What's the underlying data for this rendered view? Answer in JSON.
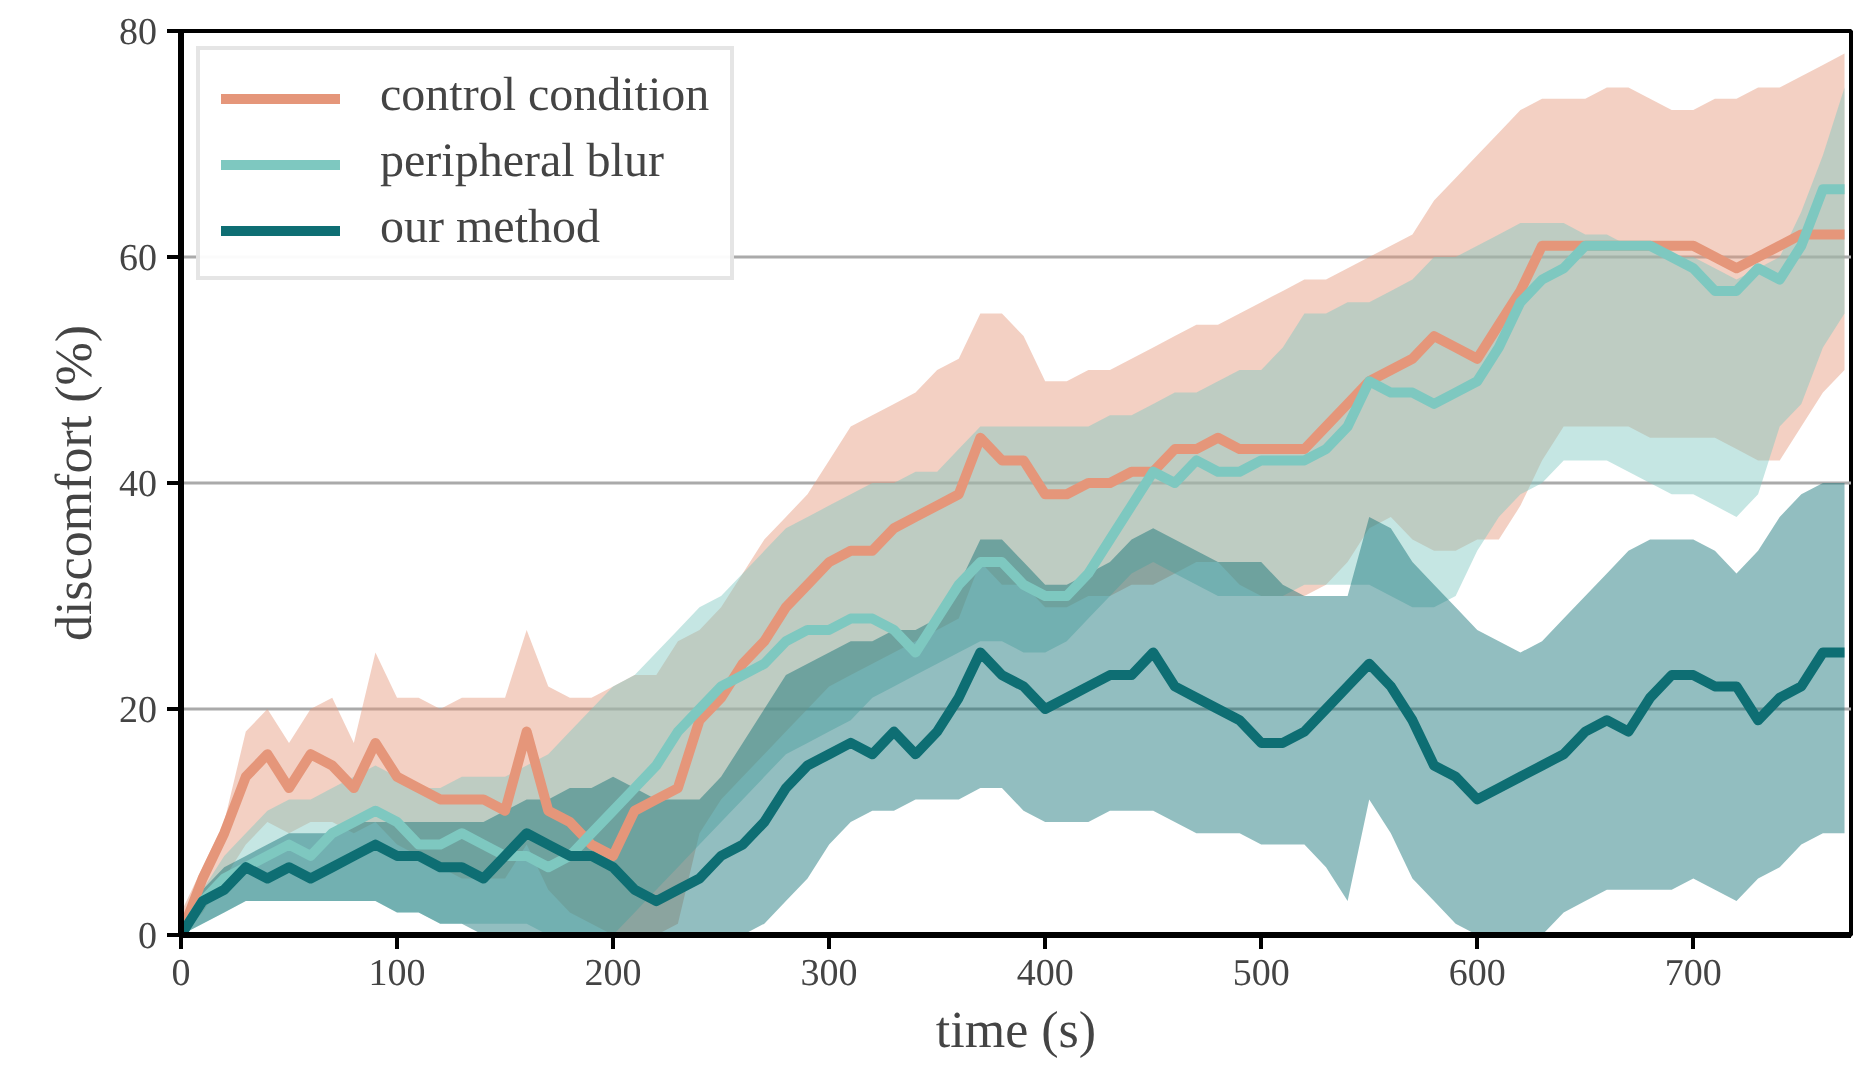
{
  "chart_data": {
    "type": "line",
    "xlabel": "time (s)",
    "ylabel": "discomfort (%)",
    "x": [
      0,
      10,
      20,
      30,
      40,
      50,
      60,
      70,
      80,
      90,
      100,
      110,
      120,
      130,
      140,
      150,
      160,
      170,
      180,
      190,
      200,
      210,
      220,
      230,
      240,
      250,
      260,
      270,
      280,
      290,
      300,
      310,
      320,
      330,
      340,
      350,
      360,
      370,
      380,
      390,
      400,
      410,
      420,
      430,
      440,
      450,
      460,
      470,
      480,
      490,
      500,
      510,
      520,
      530,
      540,
      550,
      560,
      570,
      580,
      590,
      600,
      610,
      620,
      630,
      640,
      650,
      660,
      670,
      680,
      690,
      700,
      710,
      720,
      730,
      740,
      750,
      760,
      770
    ],
    "series": [
      {
        "name": "control condition",
        "color": "#e5967a",
        "values": [
          0,
          5,
          9,
          14,
          16,
          13,
          16,
          15,
          13,
          17,
          14,
          13,
          12,
          12,
          12,
          11,
          18,
          11,
          10,
          8,
          7,
          11,
          12,
          13,
          19,
          21,
          24,
          26,
          29,
          31,
          33,
          34,
          34,
          36,
          37,
          38,
          39,
          44,
          42,
          42,
          39,
          39,
          40,
          40,
          41,
          41,
          43,
          43,
          44,
          43,
          43,
          43,
          43,
          45,
          47,
          49,
          50,
          51,
          53,
          52,
          51,
          54,
          57,
          61,
          61,
          61,
          61,
          61,
          61,
          61,
          61,
          60,
          59,
          60,
          61,
          62,
          62,
          62
        ],
        "upper": [
          2,
          6,
          10,
          18,
          20,
          17,
          20,
          21,
          17,
          25,
          21,
          21,
          20,
          21,
          21,
          21,
          27,
          22,
          21,
          21,
          22,
          23,
          23,
          26,
          27,
          29,
          32,
          35,
          37,
          39,
          42,
          45,
          46,
          47,
          48,
          50,
          51,
          55,
          55,
          53,
          49,
          49,
          50,
          50,
          51,
          52,
          53,
          54,
          54,
          55,
          56,
          57,
          58,
          58,
          59,
          60,
          61,
          62,
          65,
          67,
          69,
          71,
          73,
          74,
          74,
          74,
          75,
          75,
          74,
          73,
          73,
          74,
          74,
          75,
          75,
          76,
          77,
          78
        ],
        "lower": [
          0,
          2,
          5,
          8,
          10,
          9,
          10,
          10,
          9,
          10,
          8,
          7,
          6,
          5,
          5,
          5,
          8,
          4,
          2,
          1,
          0,
          0,
          0,
          1,
          9,
          12,
          14,
          16,
          18,
          20,
          22,
          23,
          24,
          25,
          26,
          27,
          28,
          33,
          31,
          31,
          29,
          29,
          30,
          30,
          31,
          31,
          32,
          33,
          33,
          31,
          30,
          30,
          30,
          31,
          33,
          36,
          37,
          35,
          34,
          34,
          35,
          35,
          38,
          42,
          45,
          45,
          45,
          45,
          44,
          44,
          44,
          44,
          43,
          42,
          42,
          45,
          48,
          50
        ]
      },
      {
        "name": "peripheral blur",
        "color": "#7ec8c0",
        "values": [
          0,
          3,
          5,
          6,
          7,
          8,
          7,
          9,
          10,
          11,
          10,
          8,
          8,
          9,
          8,
          7,
          7,
          6,
          7,
          9,
          11,
          13,
          15,
          18,
          20,
          22,
          23,
          24,
          26,
          27,
          27,
          28,
          28,
          27,
          25,
          28,
          31,
          33,
          33,
          31,
          30,
          30,
          32,
          35,
          38,
          41,
          40,
          42,
          41,
          41,
          42,
          42,
          42,
          43,
          45,
          49,
          48,
          48,
          47,
          48,
          49,
          52,
          56,
          58,
          59,
          61,
          61,
          61,
          61,
          60,
          59,
          57,
          57,
          59,
          58,
          61,
          66,
          66
        ],
        "upper": [
          1,
          4,
          7,
          9,
          11,
          12,
          12,
          13,
          14,
          15,
          14,
          13,
          13,
          14,
          14,
          14,
          15,
          16,
          18,
          20,
          22,
          23,
          25,
          27,
          29,
          30,
          32,
          34,
          36,
          37,
          38,
          39,
          40,
          40,
          41,
          41,
          43,
          45,
          45,
          45,
          45,
          45,
          45,
          46,
          46,
          47,
          48,
          48,
          49,
          50,
          50,
          52,
          55,
          55,
          56,
          56,
          57,
          58,
          60,
          60,
          61,
          62,
          63,
          63,
          63,
          62,
          62,
          61,
          61,
          60,
          60,
          59,
          58,
          59,
          60,
          64,
          69,
          75
        ],
        "lower": [
          0,
          1,
          2,
          3,
          3,
          3,
          3,
          3,
          3,
          3,
          2,
          2,
          1,
          1,
          1,
          1,
          1,
          0,
          0,
          0,
          0,
          2,
          4,
          6,
          8,
          10,
          12,
          14,
          16,
          17,
          18,
          19,
          21,
          22,
          23,
          24,
          25,
          26,
          26,
          25,
          25,
          26,
          28,
          30,
          32,
          33,
          32,
          31,
          30,
          30,
          30,
          30,
          31,
          31,
          31,
          31,
          30,
          29,
          29,
          30,
          34,
          37,
          39,
          40,
          42,
          42,
          42,
          41,
          40,
          39,
          39,
          38,
          37,
          39,
          45,
          47,
          52,
          55
        ]
      },
      {
        "name": "our method",
        "color": "#0e6e73",
        "values": [
          0,
          3,
          4,
          6,
          5,
          6,
          5,
          6,
          7,
          8,
          7,
          7,
          6,
          6,
          5,
          7,
          9,
          8,
          7,
          7,
          6,
          4,
          3,
          4,
          5,
          7,
          8,
          10,
          13,
          15,
          16,
          17,
          16,
          18,
          16,
          18,
          21,
          25,
          23,
          22,
          20,
          21,
          22,
          23,
          23,
          25,
          22,
          21,
          20,
          19,
          17,
          17,
          18,
          20,
          22,
          24,
          22,
          19,
          15,
          14,
          12,
          13,
          14,
          15,
          16,
          18,
          19,
          18,
          21,
          23,
          23,
          22,
          22,
          19,
          21,
          22,
          25,
          25
        ],
        "upper": [
          0,
          4,
          6,
          7,
          8,
          9,
          9,
          9,
          10,
          10,
          10,
          10,
          10,
          10,
          10,
          11,
          12,
          12,
          13,
          13,
          14,
          13,
          12,
          12,
          12,
          14,
          17,
          20,
          23,
          24,
          25,
          26,
          26,
          27,
          27,
          28,
          31,
          35,
          35,
          33,
          31,
          31,
          32,
          33,
          35,
          36,
          35,
          34,
          33,
          33,
          33,
          31,
          30,
          30,
          30,
          37,
          36,
          33,
          31,
          29,
          27,
          26,
          25,
          26,
          28,
          30,
          32,
          34,
          35,
          35,
          35,
          34,
          32,
          34,
          37,
          39,
          40,
          40
        ],
        "lower": [
          0,
          1,
          2,
          3,
          3,
          3,
          3,
          3,
          3,
          3,
          2,
          2,
          1,
          1,
          0,
          0,
          0,
          0,
          0,
          0,
          0,
          0,
          0,
          0,
          0,
          0,
          0,
          1,
          3,
          5,
          8,
          10,
          11,
          11,
          12,
          12,
          12,
          13,
          13,
          11,
          10,
          10,
          10,
          11,
          11,
          11,
          10,
          9,
          9,
          9,
          8,
          8,
          8,
          6,
          3,
          12,
          9,
          5,
          3,
          1,
          0,
          0,
          0,
          0,
          2,
          3,
          4,
          4,
          4,
          4,
          5,
          4,
          3,
          5,
          6,
          8,
          9,
          9
        ]
      }
    ],
    "xlim": [
      0,
      773
    ],
    "ylim": [
      0,
      80
    ],
    "xticks": [
      0,
      100,
      200,
      300,
      400,
      500,
      600,
      700
    ],
    "yticks": [
      0,
      20,
      40,
      60,
      80
    ],
    "grid": "y",
    "legend": "top left",
    "line_style": "solid",
    "marker": "none"
  }
}
